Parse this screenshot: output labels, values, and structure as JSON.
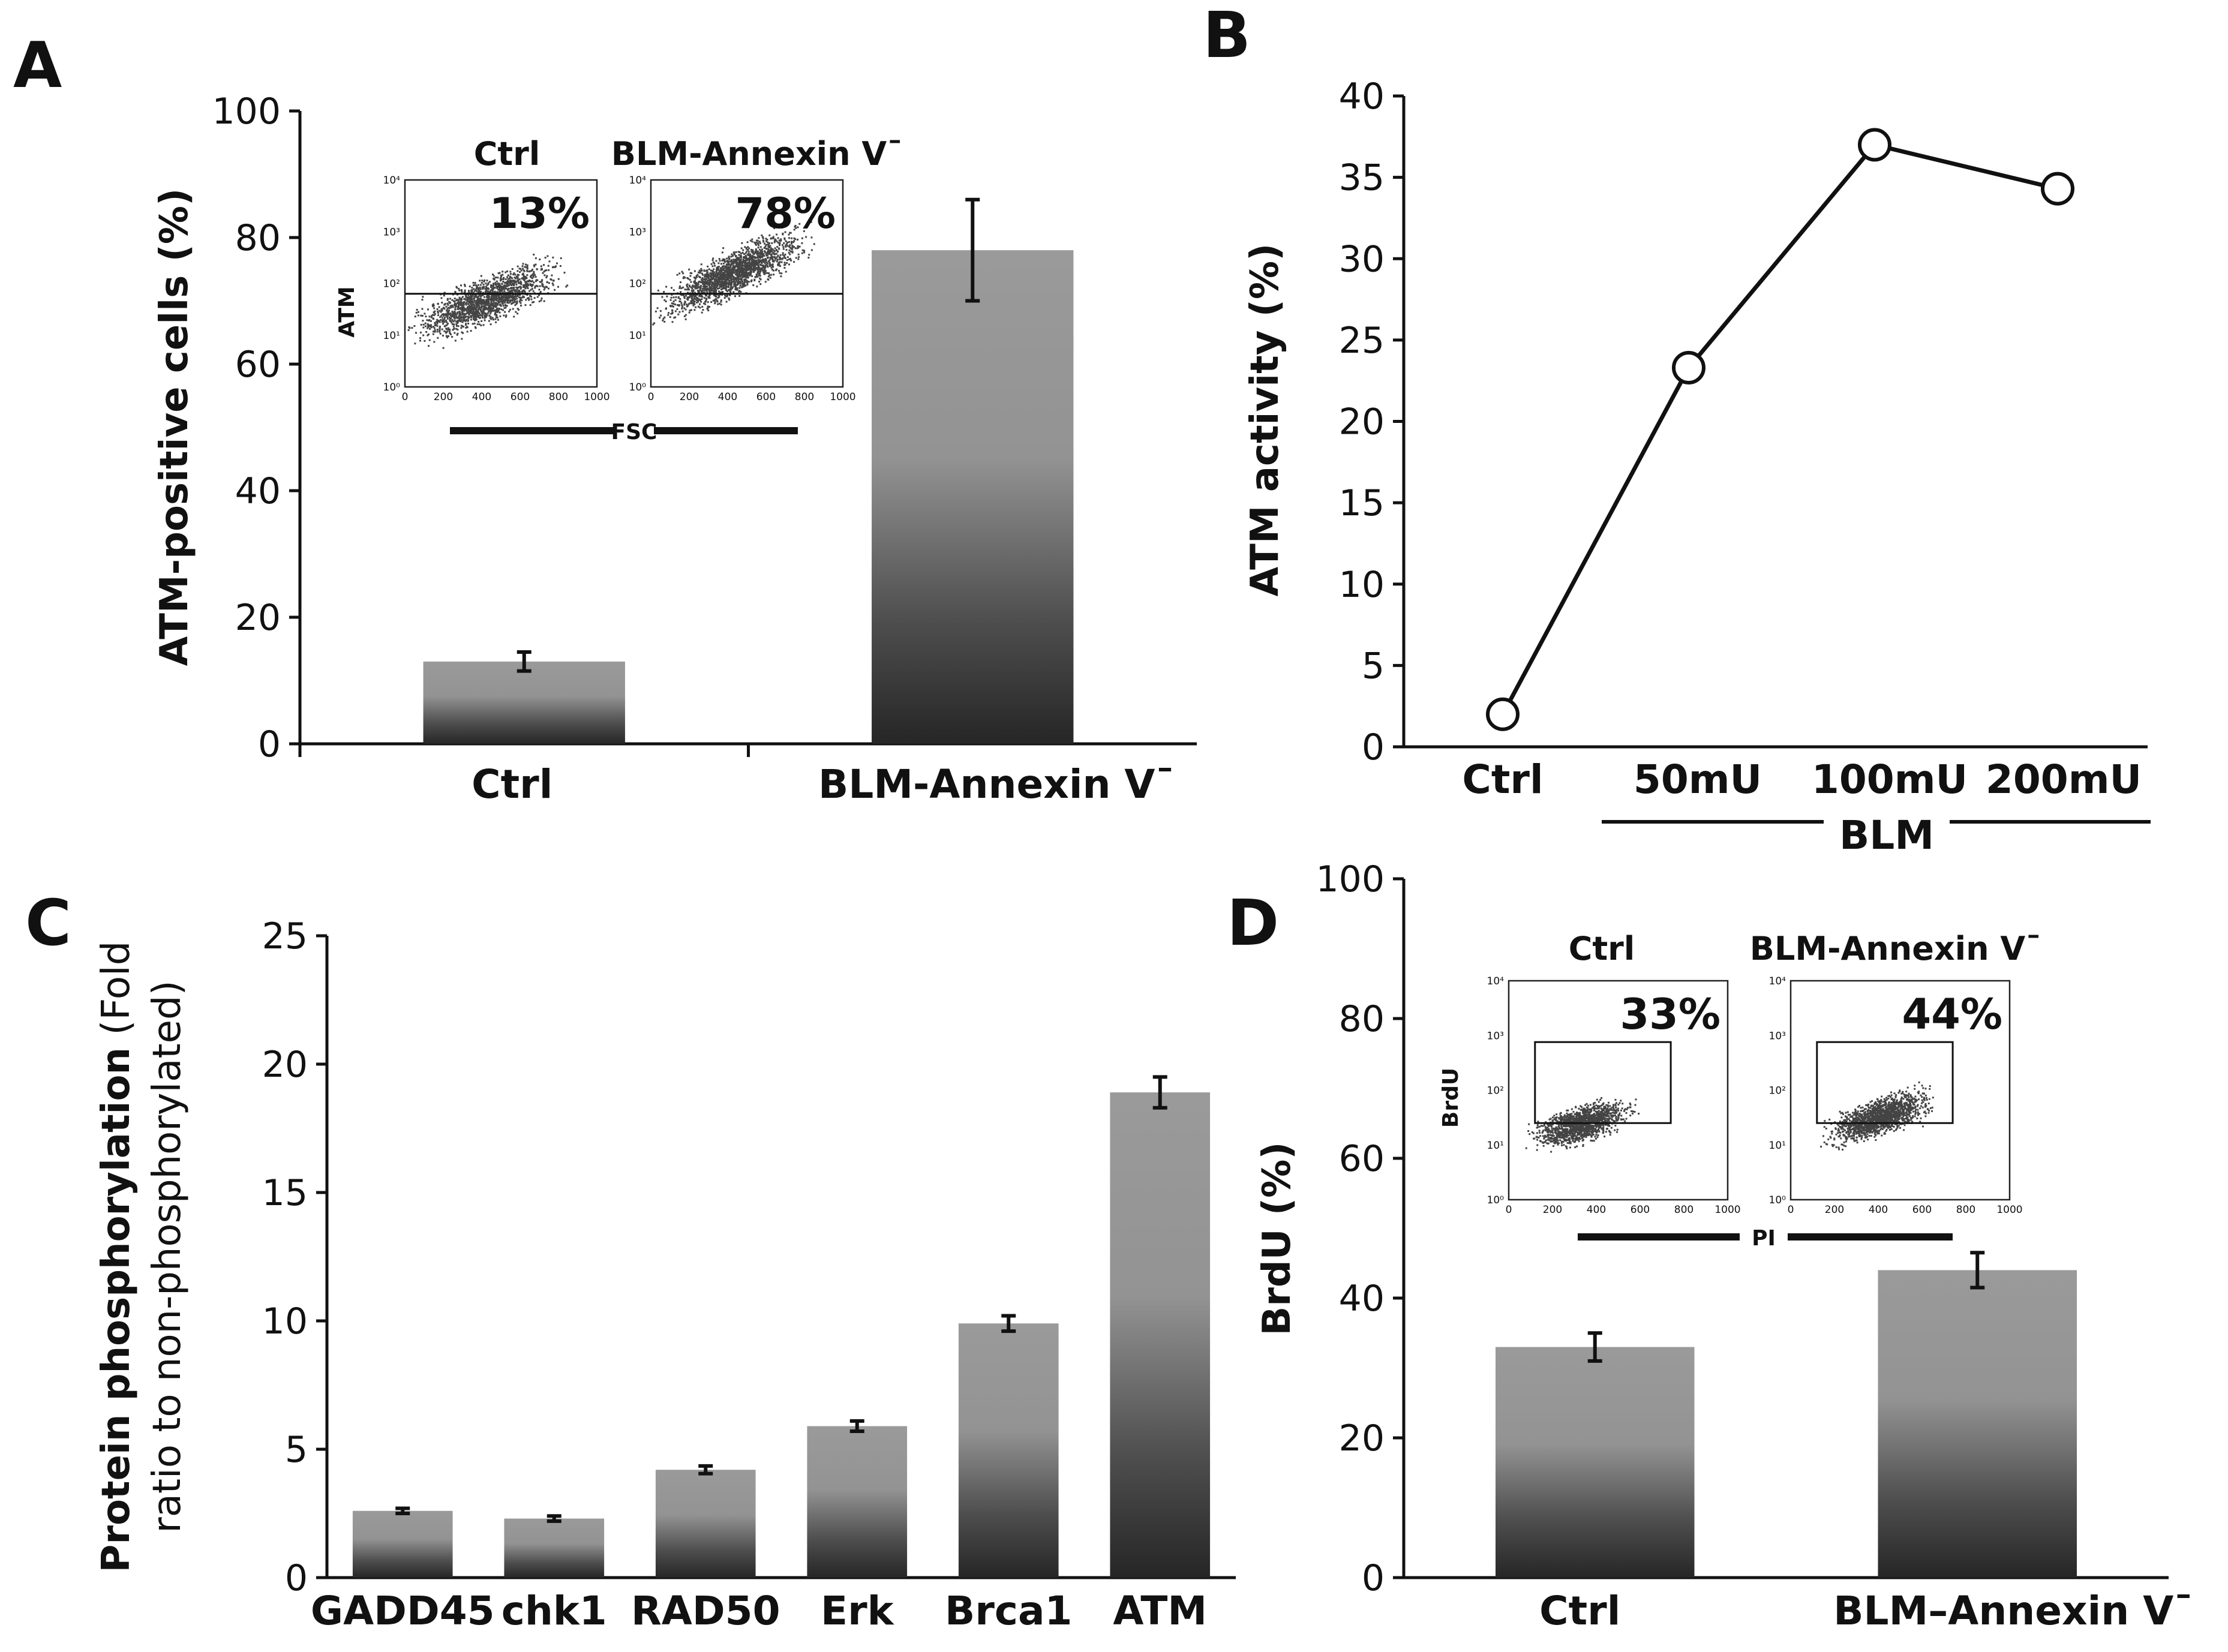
{
  "panels": {
    "A": "A",
    "B": "B",
    "C": "C",
    "D": "D"
  },
  "chart_data": [
    {
      "panel": "A",
      "type": "bar",
      "categories": [
        "Ctrl",
        "BLM-Annexin V¯"
      ],
      "values": [
        13,
        78
      ],
      "errors": [
        1.5,
        8
      ],
      "ylabel": "ATM-positive cells (%)",
      "ylim": [
        0,
        100
      ],
      "yticks": [
        0,
        20,
        40,
        60,
        80,
        100
      ],
      "inset": {
        "plots": [
          {
            "title": "Ctrl",
            "percent": "13%"
          },
          {
            "title": "BLM-Annexin V¯",
            "percent": "78%"
          }
        ],
        "ylabel": "ATM",
        "xlabel": "FSC",
        "xticks": [
          "0",
          "200",
          "400",
          "600",
          "800",
          "1000"
        ],
        "yticks": [
          "10⁰",
          "10¹",
          "10²",
          "10³",
          "10⁴"
        ]
      }
    },
    {
      "panel": "B",
      "type": "line",
      "categories": [
        "Ctrl",
        "50mU",
        "100mU",
        "200mU"
      ],
      "values": [
        2,
        23.3,
        37,
        34.3
      ],
      "ylabel": "ATM activity (%)",
      "group_label": "BLM",
      "ylim": [
        0,
        40
      ],
      "yticks": [
        0,
        5,
        10,
        15,
        20,
        25,
        30,
        35,
        40
      ]
    },
    {
      "panel": "C",
      "type": "bar",
      "categories": [
        "GADD45",
        "chk1",
        "RAD50",
        "Erk",
        "Brca1",
        "ATM"
      ],
      "values": [
        2.6,
        2.3,
        4.2,
        5.9,
        9.9,
        18.9
      ],
      "errors": [
        0.1,
        0.1,
        0.15,
        0.2,
        0.3,
        0.6
      ],
      "ylabel_bold": "Protein phosphorylation",
      "ylabel_rest1": " (Fold",
      "ylabel_rest2": "ratio to non-phosphorylated)",
      "ylim": [
        0,
        25
      ],
      "yticks": [
        0,
        5,
        10,
        15,
        20,
        25
      ]
    },
    {
      "panel": "D",
      "type": "bar",
      "categories": [
        "Ctrl",
        "BLM–Annexin V¯"
      ],
      "values": [
        33,
        44
      ],
      "errors": [
        2,
        2.5
      ],
      "ylabel": "BrdU (%)",
      "ylim": [
        0,
        100
      ],
      "yticks": [
        0,
        20,
        40,
        60,
        80,
        100
      ],
      "inset": {
        "plots": [
          {
            "title": "Ctrl",
            "percent": "33%"
          },
          {
            "title": "BLM-Annexin V¯",
            "percent": "44%"
          }
        ],
        "ylabel": "BrdU",
        "xlabel": "PI",
        "xticks": [
          "0",
          "200",
          "400",
          "600",
          "800",
          "1000"
        ],
        "yticks": [
          "10⁰",
          "10¹",
          "10²",
          "10³",
          "10⁴"
        ]
      }
    }
  ]
}
